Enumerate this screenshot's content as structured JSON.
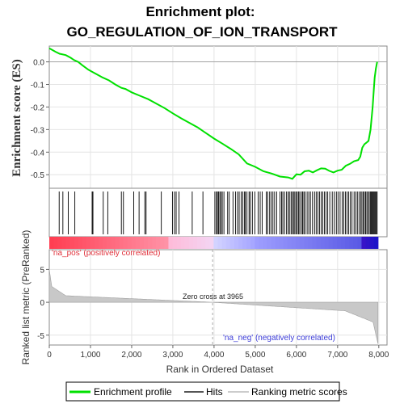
{
  "title_line1": "Enrichment plot:",
  "title_line2": "GO_REGULATION_OF_ION_TRANSPORT",
  "chart_data": {
    "type": "line",
    "x_label": "Rank in Ordered Dataset",
    "es_axis": {
      "label": "Enrichment score (ES)",
      "ylim": [
        -0.56,
        0.07
      ],
      "ticks": [
        0.0,
        -0.1,
        -0.2,
        -0.3,
        -0.4,
        -0.5
      ],
      "tick_labels": [
        "0.0",
        "-0.1",
        "-0.2",
        "-0.3",
        "-0.4",
        "-0.5"
      ]
    },
    "metric_axis": {
      "label": "Ranked list metric (PreRanked)",
      "ylim": [
        -6.5,
        8
      ],
      "ticks": [
        5,
        0,
        -5
      ],
      "tick_labels": [
        "5",
        "0",
        "-5"
      ]
    },
    "x_axis": {
      "xlim": [
        0,
        8200
      ],
      "ticks": [
        0,
        1000,
        2000,
        3000,
        4000,
        5000,
        6000,
        7000,
        8000
      ],
      "tick_labels": [
        "0",
        "1,000",
        "2,000",
        "3,000",
        "4,000",
        "5,000",
        "6,000",
        "7,000",
        "8,000"
      ]
    },
    "series": [
      {
        "name": "Enrichment profile",
        "color": "#00e000",
        "points": [
          [
            0,
            0.06
          ],
          [
            150,
            0.045
          ],
          [
            250,
            0.036
          ],
          [
            400,
            0.03
          ],
          [
            520,
            0.018
          ],
          [
            600,
            0.008
          ],
          [
            700,
            0.0
          ],
          [
            800,
            -0.015
          ],
          [
            950,
            -0.035
          ],
          [
            1050,
            -0.045
          ],
          [
            1150,
            -0.055
          ],
          [
            1300,
            -0.07
          ],
          [
            1450,
            -0.082
          ],
          [
            1600,
            -0.1
          ],
          [
            1750,
            -0.115
          ],
          [
            1850,
            -0.12
          ],
          [
            2000,
            -0.135
          ],
          [
            2200,
            -0.15
          ],
          [
            2400,
            -0.165
          ],
          [
            2600,
            -0.185
          ],
          [
            2800,
            -0.205
          ],
          [
            3000,
            -0.228
          ],
          [
            3200,
            -0.25
          ],
          [
            3400,
            -0.27
          ],
          [
            3600,
            -0.29
          ],
          [
            3800,
            -0.315
          ],
          [
            4000,
            -0.34
          ],
          [
            4200,
            -0.362
          ],
          [
            4400,
            -0.385
          ],
          [
            4600,
            -0.41
          ],
          [
            4800,
            -0.45
          ],
          [
            5000,
            -0.465
          ],
          [
            5200,
            -0.485
          ],
          [
            5400,
            -0.495
          ],
          [
            5600,
            -0.508
          ],
          [
            5800,
            -0.512
          ],
          [
            5900,
            -0.518
          ],
          [
            6000,
            -0.498
          ],
          [
            6100,
            -0.5
          ],
          [
            6200,
            -0.485
          ],
          [
            6300,
            -0.482
          ],
          [
            6400,
            -0.49
          ],
          [
            6500,
            -0.48
          ],
          [
            6600,
            -0.472
          ],
          [
            6700,
            -0.473
          ],
          [
            6800,
            -0.483
          ],
          [
            6900,
            -0.49
          ],
          [
            7000,
            -0.482
          ],
          [
            7100,
            -0.478
          ],
          [
            7200,
            -0.46
          ],
          [
            7300,
            -0.452
          ],
          [
            7400,
            -0.44
          ],
          [
            7500,
            -0.435
          ],
          [
            7550,
            -0.42
          ],
          [
            7600,
            -0.38
          ],
          [
            7650,
            -0.365
          ],
          [
            7700,
            -0.358
          ],
          [
            7750,
            -0.35
          ],
          [
            7800,
            -0.3
          ],
          [
            7850,
            -0.2
          ],
          [
            7880,
            -0.12
          ],
          [
            7900,
            -0.07
          ],
          [
            7930,
            -0.03
          ],
          [
            7960,
            0.0
          ]
        ]
      }
    ],
    "hits_ranks": [
      240,
      330,
      460,
      620,
      1040,
      1060,
      1310,
      1420,
      1750,
      1800,
      2050,
      2180,
      2320,
      2350,
      2720,
      2990,
      3040,
      3080,
      3150,
      3470,
      3730,
      4020,
      4060,
      4080,
      4110,
      4140,
      4170,
      4200,
      4240,
      4330,
      4370,
      4460,
      4520,
      4570,
      4610,
      4660,
      4700,
      4740,
      4760,
      4800,
      4850,
      4880,
      4930,
      4990,
      5070,
      5120,
      5170,
      5270,
      5300,
      5350,
      5390,
      5430,
      5470,
      5520,
      5600,
      5640,
      5670,
      5710,
      5760,
      5800,
      5830,
      5870,
      5900,
      5930,
      5960,
      5990,
      6020,
      6050,
      6080,
      6120,
      6150,
      6180,
      6210,
      6260,
      6300,
      6340,
      6390,
      6440,
      6480,
      6520,
      6560,
      6600,
      6640,
      6680,
      6720,
      6760,
      6810,
      6870,
      6920,
      6970,
      7010,
      7060,
      7110,
      7150,
      7190,
      7230,
      7270,
      7310,
      7350,
      7400,
      7440,
      7480,
      7520,
      7560,
      7590,
      7620,
      7650,
      7680,
      7710,
      7740,
      7770,
      7800,
      7820,
      7840,
      7860,
      7880,
      7900,
      7920,
      7940,
      7960
    ],
    "zero_cross": 3965,
    "n_genes": 7980
  },
  "annotations": {
    "pos": "'na_pos' (positively correlated)",
    "neg": "'na_neg' (negatively correlated)",
    "zero_cross": "Zero cross at 3965"
  },
  "legend": {
    "items": [
      {
        "label": "Enrichment profile",
        "color": "#00e000"
      },
      {
        "label": "Hits",
        "color": "#555555"
      },
      {
        "label": "Ranking metric scores",
        "color": "#cccccc"
      }
    ]
  }
}
